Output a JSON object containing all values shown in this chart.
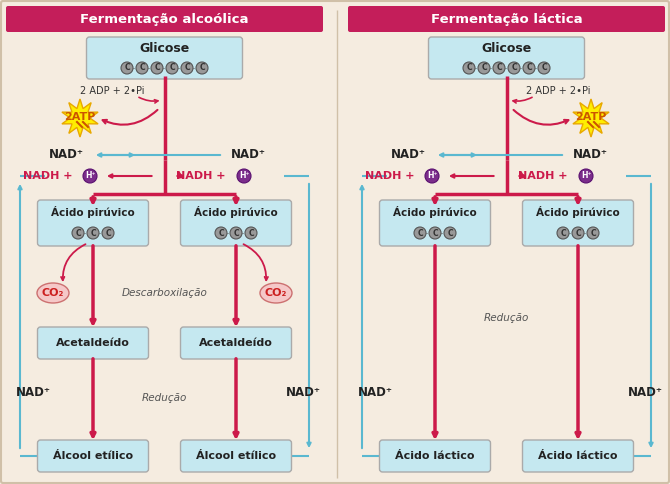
{
  "bg_color": "#f5ece0",
  "title_bar_color": "#c41e5a",
  "title_text_color": "#ffffff",
  "box_fill_color": "#c5e8f0",
  "box_edge_color": "#aaaaaa",
  "arrow_dark": "#cc1a4a",
  "arrow_light": "#5ab8d0",
  "nad_color": "#222222",
  "nadh_color": "#cc1a4a",
  "co2_fill": "#f5c8c8",
  "co2_edge": "#cc7070",
  "atp_fill": "#ffee00",
  "hplus_fill": "#7b2d8b",
  "hplus_text": "#ffffff",
  "panel_left_title": "Fermentação alcoólica",
  "panel_right_title": "Fermentação láctica",
  "glicose_label": "Glicose",
  "adp_label": "2 ADP + 2•Pi",
  "atp_label": "2ATP",
  "nad_label": "NAD⁺",
  "nadh_label": "NADH + ",
  "hplus_label": "H⁺",
  "acido_piruvico_label": "Ácido pirúvico",
  "descarboxilacao_label": "Descarboxilação",
  "reducao_label": "Redução",
  "co2_label": "CO₂",
  "acetaldeido_label": "Acetaldeído",
  "alcool_label": "Álcool etílico",
  "acido_lactico_label": "Ácido láctico"
}
